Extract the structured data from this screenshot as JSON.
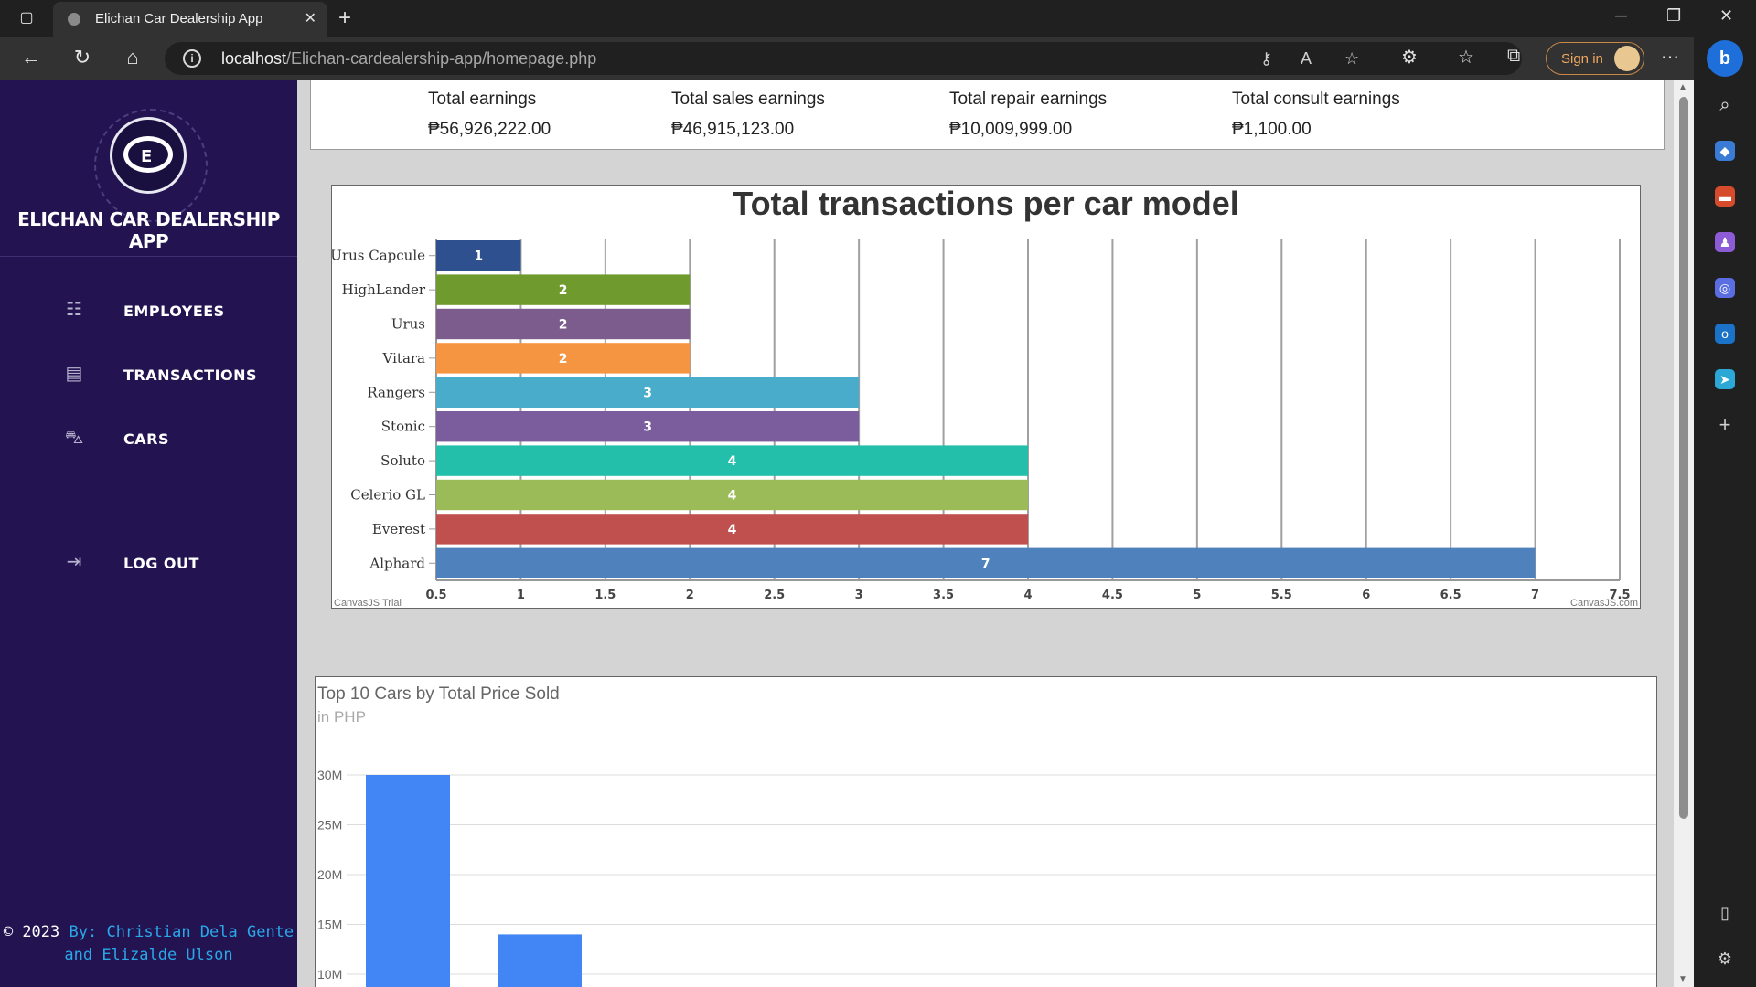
{
  "browser": {
    "tab_title": "Elichan Car Dealership App",
    "url_host": "localhost",
    "url_path": "/Elichan-cardealership-app/homepage.php",
    "sign_in_label": "Sign in"
  },
  "sidebar": {
    "app_name": "ELICHAN CAR DEALERSHIP APP",
    "items": [
      {
        "label": "EMPLOYEES",
        "icon": "employees-icon"
      },
      {
        "label": "TRANSACTIONS",
        "icon": "document-icon"
      },
      {
        "label": "CARS",
        "icon": "car-icon"
      },
      {
        "label": "LOG OUT",
        "icon": "logout-icon"
      }
    ],
    "footer_copy": "© 2023",
    "footer_by": "By: Christian Dela Gente and Elizalde Ulson"
  },
  "earnings": [
    {
      "title": "Total earnings",
      "value": "₱56,926,222.00"
    },
    {
      "title": "Total sales earnings",
      "value": "₱46,915,123.00"
    },
    {
      "title": "Total repair earnings",
      "value": "₱10,009,999.00"
    },
    {
      "title": "Total consult earnings",
      "value": "₱1,100.00"
    }
  ],
  "chart_data": [
    {
      "type": "bar",
      "orientation": "horizontal",
      "title": "Total transactions per car model",
      "categories": [
        "Urus Capcule",
        "HighLander",
        "Urus",
        "Vitara",
        "Rangers",
        "Stonic",
        "Soluto",
        "Celerio GL",
        "Everest",
        "Alphard"
      ],
      "values": [
        1,
        2,
        2,
        2,
        3,
        3,
        4,
        4,
        4,
        7
      ],
      "colors": [
        "#2e508f",
        "#6f9b2e",
        "#7b5c8c",
        "#f69541",
        "#4aaccb",
        "#7b5c9c",
        "#23bfaa",
        "#9bbb59",
        "#c0504e",
        "#4f81bc"
      ],
      "xlim": [
        0.5,
        7.5
      ],
      "xticks": [
        "0.5",
        "1",
        "1.5",
        "2",
        "2.5",
        "3",
        "3.5",
        "4",
        "4.5",
        "5",
        "5.5",
        "6",
        "6.5",
        "7",
        "7.5"
      ],
      "watermark_left": "CanvasJS Trial",
      "watermark_right": "CanvasJS.com",
      "grid": true
    },
    {
      "type": "bar",
      "title": "Top 10 Cars by Total Price Sold",
      "subtitle": "in PHP",
      "values": [
        30000000,
        14000000
      ],
      "yticks": [
        "30M",
        "25M",
        "20M",
        "15M",
        "10M"
      ],
      "ylim": [
        8000000,
        31000000
      ],
      "color": "#4285f4",
      "grid": true
    }
  ]
}
